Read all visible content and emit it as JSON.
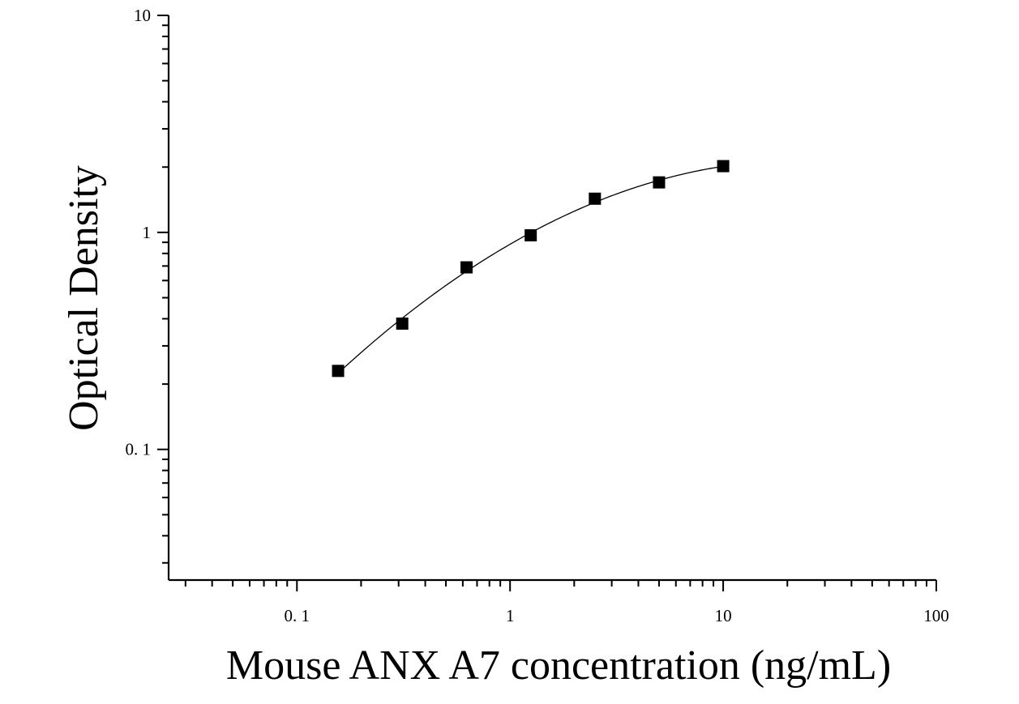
{
  "chart_data": {
    "type": "scatter",
    "title": "",
    "xlabel": "Mouse ANX A7 concentration (ng/mL)",
    "ylabel": "Optical Density",
    "x_scale": "log",
    "y_scale": "log",
    "xlim": [
      0.025,
      100
    ],
    "ylim": [
      0.025,
      10
    ],
    "x_ticks": [
      {
        "value": 0.1,
        "label": "0. 1"
      },
      {
        "value": 1,
        "label": "1"
      },
      {
        "value": 10,
        "label": "10"
      },
      {
        "value": 100,
        "label": "100"
      }
    ],
    "y_ticks": [
      {
        "value": 0.1,
        "label": "0. 1"
      },
      {
        "value": 1,
        "label": "1"
      },
      {
        "value": 10,
        "label": "10"
      }
    ],
    "grid": false,
    "legend": "none",
    "series": [
      {
        "marker": "square",
        "color": "#000000",
        "fit_line": true,
        "points": [
          {
            "x": 0.156,
            "y": 0.23
          },
          {
            "x": 0.312,
            "y": 0.38
          },
          {
            "x": 0.625,
            "y": 0.69
          },
          {
            "x": 1.25,
            "y": 0.97
          },
          {
            "x": 2.5,
            "y": 1.43
          },
          {
            "x": 5,
            "y": 1.7
          },
          {
            "x": 10,
            "y": 2.02
          }
        ]
      }
    ]
  }
}
